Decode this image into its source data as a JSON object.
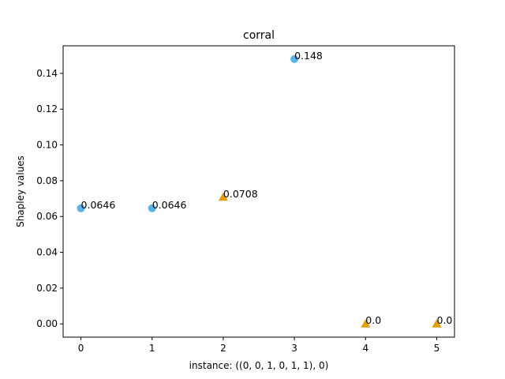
{
  "chart_data": {
    "type": "scatter",
    "title": "corral",
    "xlabel": "instance: ((0, 0, 1, 0, 1, 1), 0)",
    "ylabel": "Shapley values",
    "xlim": [
      -0.25,
      5.25
    ],
    "ylim": [
      -0.0074,
      0.1554
    ],
    "xticks": [
      0,
      1,
      2,
      3,
      4,
      5
    ],
    "xtick_labels": [
      "0",
      "1",
      "2",
      "3",
      "4",
      "5"
    ],
    "yticks": [
      0.0,
      0.02,
      0.04,
      0.06,
      0.08,
      0.1,
      0.12,
      0.14
    ],
    "ytick_labels": [
      "0.00",
      "0.02",
      "0.04",
      "0.06",
      "0.08",
      "0.10",
      "0.12",
      "0.14"
    ],
    "grid": false,
    "colors": {
      "circle": "#56b4e9",
      "triangle": "#e69f00"
    },
    "points": [
      {
        "x": 0,
        "y": 0.0646,
        "label": "0.0646",
        "marker": "circle"
      },
      {
        "x": 1,
        "y": 0.0646,
        "label": "0.0646",
        "marker": "circle"
      },
      {
        "x": 2,
        "y": 0.0708,
        "label": "0.0708",
        "marker": "triangle"
      },
      {
        "x": 3,
        "y": 0.148,
        "label": "0.148",
        "marker": "circle"
      },
      {
        "x": 4,
        "y": 0.0,
        "label": "0.0",
        "marker": "triangle"
      },
      {
        "x": 5,
        "y": 0.0,
        "label": "0.0",
        "marker": "triangle"
      }
    ]
  }
}
